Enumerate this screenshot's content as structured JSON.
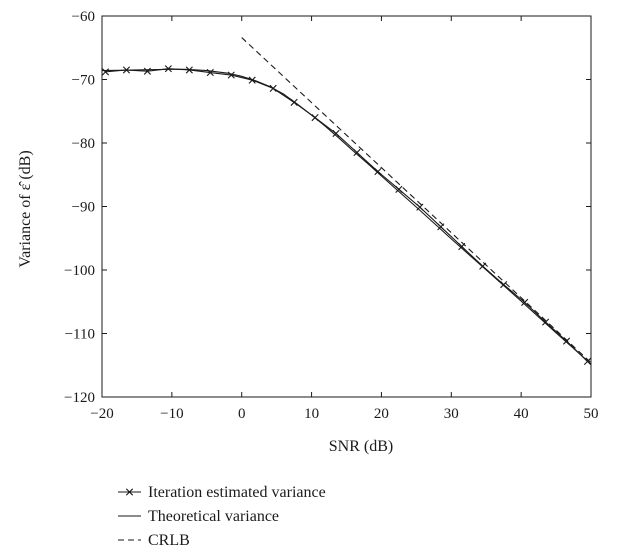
{
  "chart_data": {
    "type": "line",
    "xlabel": "SNR (dB)",
    "ylabel": "Variance of ε̂ (dB)",
    "xlim": [
      -20,
      50
    ],
    "ylim": [
      -120,
      -60
    ],
    "xticks": [
      "−20",
      "−10",
      "0",
      "10",
      "20",
      "30",
      "40",
      "50"
    ],
    "yticks": [
      "−60",
      "−70",
      "−80",
      "−90",
      "−100",
      "−110",
      "−120"
    ],
    "grid": false,
    "legend_position": "bottom-left-outside",
    "series": [
      {
        "name": "Iteration estimated variance",
        "style": "solid-x-markers",
        "color": "#1a1a1a",
        "x": [
          -19.5,
          -16.5,
          -13.5,
          -10.5,
          -7.5,
          -4.5,
          -1.5,
          1.5,
          4.5,
          7.5,
          10.5,
          13.5,
          16.5,
          19.5,
          22.5,
          25.5,
          28.5,
          31.5,
          34.5,
          37.5,
          40.5,
          43.5,
          46.5,
          49.5
        ],
        "y": [
          -68.8,
          -68.5,
          -68.7,
          -68.3,
          -68.5,
          -68.9,
          -69.3,
          -70.1,
          -71.4,
          -73.6,
          -76.0,
          -78.5,
          -81.5,
          -84.5,
          -87.3,
          -90.1,
          -93.2,
          -96.3,
          -99.4,
          -102.3,
          -105.1,
          -108.2,
          -111.2,
          -114.4
        ]
      },
      {
        "name": "Theoretical variance",
        "style": "solid",
        "color": "#1a1a1a",
        "x": [
          -20,
          -15,
          -10,
          -8,
          -5,
          -2,
          0,
          2,
          4,
          6,
          8,
          10,
          12,
          14,
          16,
          18,
          20,
          25,
          30,
          35,
          40,
          45,
          50
        ],
        "y": [
          -68.6,
          -68.5,
          -68.4,
          -68.4,
          -68.6,
          -69.0,
          -69.5,
          -70.2,
          -71.1,
          -72.3,
          -73.9,
          -75.6,
          -77.4,
          -79.3,
          -81.3,
          -83.2,
          -85.2,
          -90.1,
          -95.1,
          -100.0,
          -104.9,
          -109.9,
          -114.8
        ]
      },
      {
        "name": "CRLB",
        "style": "dashed",
        "color": "#1a1a1a",
        "x": [
          0,
          50
        ],
        "y": [
          -63.4,
          -114.6
        ]
      }
    ]
  }
}
